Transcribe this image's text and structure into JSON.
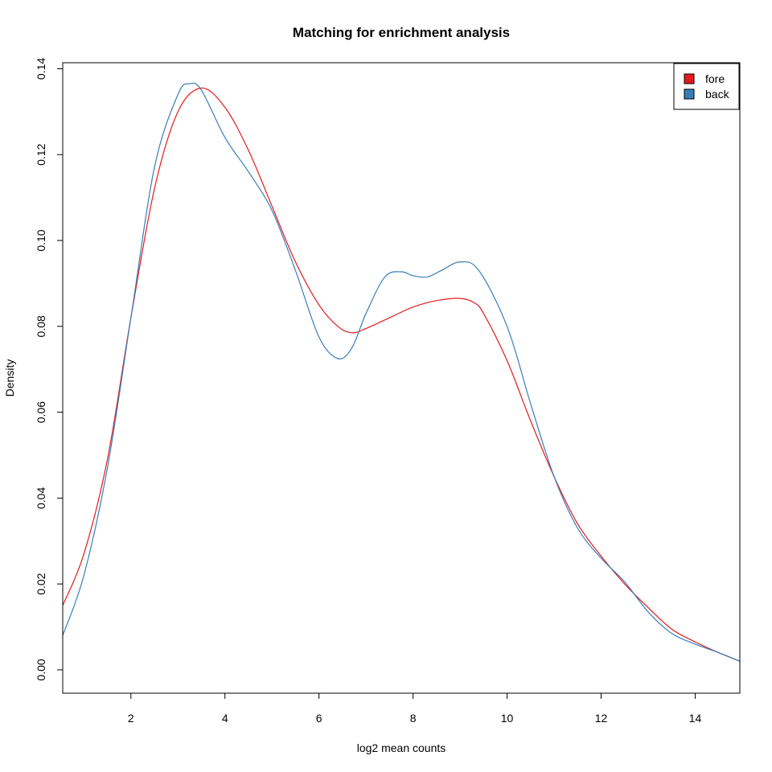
{
  "chart_data": {
    "type": "line",
    "title": "Matching for enrichment analysis",
    "xlabel": "log2 mean counts",
    "ylabel": "Density",
    "xlim": [
      0.55,
      14.95
    ],
    "ylim": [
      -0.00544,
      0.1414
    ],
    "x_ticks": [
      2,
      4,
      6,
      8,
      10,
      12,
      14
    ],
    "x_tick_labels": [
      "2",
      "4",
      "6",
      "8",
      "10",
      "12",
      "14"
    ],
    "y_ticks": [
      0.0,
      0.02,
      0.04,
      0.06,
      0.08,
      0.1,
      0.12,
      0.14
    ],
    "y_tick_labels": [
      "0.00",
      "0.02",
      "0.04",
      "0.06",
      "0.08",
      "0.10",
      "0.12",
      "0.14"
    ],
    "legend_position": "top-right",
    "series": [
      {
        "name": "fore",
        "color": "#E41A1C",
        "x": [
          0.55,
          1.0,
          1.5,
          2.0,
          2.5,
          3.0,
          3.5,
          4.0,
          4.5,
          5.0,
          5.5,
          6.0,
          6.4,
          6.7,
          7.0,
          7.5,
          8.0,
          8.5,
          9.0,
          9.3,
          9.5,
          10.0,
          10.5,
          11.0,
          11.5,
          12.0,
          12.5,
          13.0,
          13.5,
          14.0,
          14.5,
          14.95
        ],
        "values": [
          0.015,
          0.027,
          0.049,
          0.082,
          0.112,
          0.13,
          0.1355,
          0.131,
          0.121,
          0.108,
          0.095,
          0.085,
          0.08,
          0.0785,
          0.0795,
          0.082,
          0.0845,
          0.086,
          0.0865,
          0.0855,
          0.083,
          0.072,
          0.058,
          0.045,
          0.034,
          0.0265,
          0.02,
          0.0145,
          0.0095,
          0.0065,
          0.004,
          0.002
        ]
      },
      {
        "name": "back",
        "color": "#377EB8",
        "x": [
          0.55,
          1.0,
          1.5,
          2.0,
          2.5,
          3.0,
          3.25,
          3.5,
          4.0,
          4.5,
          5.0,
          5.5,
          6.0,
          6.4,
          6.7,
          7.0,
          7.4,
          7.75,
          8.0,
          8.3,
          8.6,
          9.0,
          9.4,
          10.0,
          10.5,
          11.0,
          11.5,
          12.0,
          12.5,
          13.0,
          13.5,
          14.0,
          14.5,
          14.95
        ],
        "values": [
          0.008,
          0.022,
          0.047,
          0.082,
          0.117,
          0.134,
          0.1365,
          0.135,
          0.124,
          0.116,
          0.107,
          0.093,
          0.0775,
          0.0725,
          0.075,
          0.083,
          0.0915,
          0.0927,
          0.0918,
          0.0915,
          0.093,
          0.095,
          0.093,
          0.08,
          0.062,
          0.045,
          0.033,
          0.026,
          0.0205,
          0.0135,
          0.0085,
          0.006,
          0.004,
          0.002
        ]
      }
    ]
  }
}
